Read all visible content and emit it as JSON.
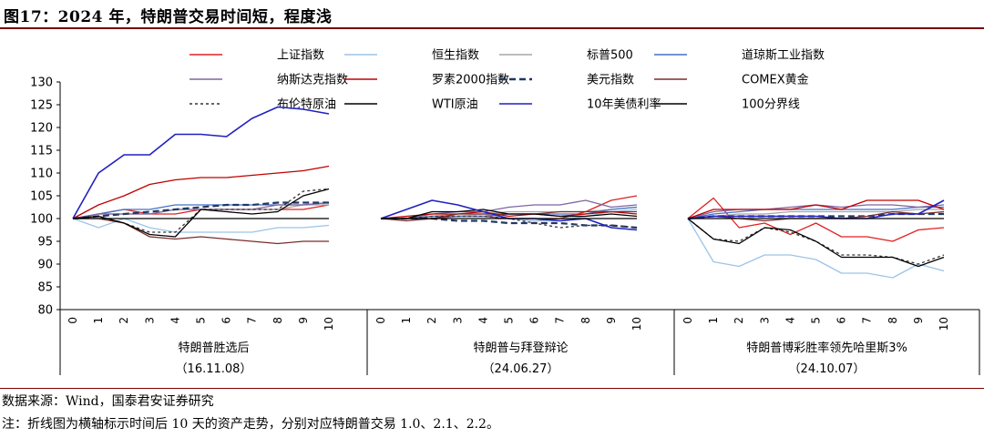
{
  "page": {
    "title": "图17：2024 年，特朗普交易时间短，程度浅",
    "source": "数据来源：Wind，国泰君安证券研究",
    "note": "注：折线图为横轴标示时间后 10 天的资产走势，分别对应特朗普交易 1.0、2.1、2.2。"
  },
  "chart_data": {
    "type": "line",
    "title": "",
    "ylim": [
      80,
      130
    ],
    "yticks": [
      80,
      85,
      90,
      95,
      100,
      105,
      110,
      115,
      120,
      125,
      130
    ],
    "x": [
      0,
      1,
      2,
      3,
      4,
      5,
      6,
      7,
      8,
      9,
      10
    ],
    "legend_position": "top",
    "panels": [
      {
        "label": "特朗普胜选后",
        "date": "（16.11.08）",
        "series": {
          "shanghai": [
            100,
            101,
            102,
            101,
            101,
            102,
            102,
            102,
            102,
            102,
            103
          ],
          "hangseng": [
            100,
            98,
            100,
            98,
            97,
            97,
            97,
            97,
            98,
            98,
            98.5
          ],
          "sp500": [
            100,
            101,
            101,
            101,
            102,
            102,
            102,
            102,
            102,
            103,
            103
          ],
          "dow": [
            100,
            101,
            102,
            102,
            103,
            103,
            103,
            103,
            103,
            103,
            103.5
          ],
          "nasdaq": [
            100,
            101,
            101,
            101,
            102,
            102,
            102,
            102,
            103,
            103,
            103.5
          ],
          "csi2000": [
            100,
            103,
            105,
            107.5,
            108.5,
            109,
            109,
            109.5,
            110,
            110.5,
            111.5
          ],
          "dxy": [
            100,
            100.5,
            101,
            101.5,
            102,
            102.5,
            103,
            103,
            103.5,
            103.5,
            103.5
          ],
          "comex_gold": [
            100,
            100,
            99,
            96,
            95.5,
            96,
            95.5,
            95,
            94.5,
            95,
            95
          ],
          "brent": [
            100,
            100.5,
            99,
            97,
            97,
            102,
            102,
            102,
            102,
            106,
            106.5
          ],
          "wti": [
            100,
            100.5,
            99,
            96.5,
            96,
            102,
            101.5,
            101,
            101.5,
            105,
            106.5
          ],
          "ust10y": [
            100,
            110,
            114,
            114,
            118.5,
            118.5,
            118,
            122,
            124.5,
            124,
            123
          ],
          "line100": [
            100,
            100,
            100,
            100,
            100,
            100,
            100,
            100,
            100,
            100,
            100
          ]
        }
      },
      {
        "label": "特朗普与拜登辩论",
        "date": "（24.06.27）",
        "series": {
          "shanghai": [
            100,
            100,
            100,
            100.5,
            100.5,
            100,
            99.5,
            100,
            101.5,
            104,
            105
          ],
          "hangseng": [
            100,
            100,
            100.5,
            100.5,
            101,
            100,
            99.5,
            99.5,
            100.5,
            101.5,
            102
          ],
          "sp500": [
            100,
            100,
            100.5,
            101,
            101,
            101.5,
            101.5,
            101.5,
            101.5,
            102,
            102.5
          ],
          "dow": [
            100,
            100,
            100.5,
            100.5,
            100.5,
            101,
            101,
            101,
            101,
            102,
            102.5
          ],
          "nasdaq": [
            100,
            100,
            101,
            101.5,
            101.5,
            102.5,
            103,
            103,
            104,
            102.5,
            103
          ],
          "csi2000": [
            100,
            100.5,
            101,
            101,
            101.5,
            100.5,
            101,
            100.5,
            101,
            101.5,
            101
          ],
          "dxy": [
            100,
            100,
            100,
            99.5,
            99.5,
            99,
            99,
            99,
            98.5,
            98.5,
            98
          ],
          "comex_gold": [
            100,
            99.5,
            100,
            101,
            101,
            101,
            101,
            101.5,
            101.5,
            101.5,
            101.5
          ],
          "brent": [
            100,
            100,
            100.5,
            100.5,
            100.5,
            100,
            99,
            98,
            98.5,
            98.5,
            98
          ],
          "wti": [
            100,
            100,
            101.5,
            101.5,
            102,
            101,
            101,
            100.5,
            100.5,
            101,
            100.5
          ],
          "ust10y": [
            100,
            102,
            104,
            103,
            101.5,
            100,
            100,
            99.5,
            100,
            98,
            97.5
          ],
          "line100": [
            100,
            100,
            100,
            100,
            100,
            100,
            100,
            100,
            100,
            100,
            100
          ]
        }
      },
      {
        "label": "特朗普博彩胜率领先哈里斯3%",
        "date": "（24.10.07）",
        "series": {
          "shanghai": [
            100,
            104.5,
            98,
            99,
            96.5,
            99,
            96,
            96,
            95,
            97.5,
            98
          ],
          "hangseng": [
            100,
            90.5,
            89.5,
            92,
            92,
            91,
            88,
            88,
            87,
            90,
            88.5
          ],
          "sp500": [
            100,
            100.5,
            101,
            101,
            101.5,
            101.5,
            101.5,
            101.5,
            101.5,
            102,
            102
          ],
          "dow": [
            100,
            101,
            101.5,
            102,
            102,
            102,
            102,
            102,
            102,
            102.5,
            102.5
          ],
          "nasdaq": [
            100,
            101.5,
            102,
            102,
            102.5,
            103,
            102.5,
            103,
            103,
            102.5,
            103
          ],
          "csi2000": [
            100,
            102,
            102,
            102,
            102,
            103,
            102,
            104,
            104,
            104,
            102
          ],
          "dxy": [
            100,
            100.5,
            100.5,
            100.5,
            100.5,
            100.5,
            100.5,
            100.5,
            101,
            101,
            101
          ],
          "comex_gold": [
            100,
            100.5,
            100,
            99.5,
            100,
            100,
            100,
            100.5,
            101.5,
            101,
            101.5
          ],
          "brent": [
            100,
            95.5,
            95,
            98,
            97,
            95,
            92,
            92,
            91.5,
            90,
            92
          ],
          "wti": [
            100,
            95.5,
            94.5,
            98,
            97.5,
            95,
            91.5,
            91.5,
            91.5,
            89.5,
            91.5
          ],
          "ust10y": [
            100,
            100.5,
            100.5,
            100.5,
            100.5,
            100.5,
            100,
            100,
            101,
            101,
            104
          ],
          "line100": [
            100,
            100,
            100,
            100,
            100,
            100,
            100,
            100,
            100,
            100,
            100
          ]
        }
      }
    ],
    "legend": [
      {
        "key": "shanghai",
        "name": "上证指数",
        "color": "#e02020",
        "dash": "solid"
      },
      {
        "key": "hangseng",
        "name": "恒生指数",
        "color": "#9cc4e8",
        "dash": "solid"
      },
      {
        "key": "sp500",
        "name": "标普500",
        "color": "#a6a6a6",
        "dash": "solid"
      },
      {
        "key": "dow",
        "name": "道琼斯工业指数",
        "color": "#4472c4",
        "dash": "solid"
      },
      {
        "key": "nasdaq",
        "name": "纳斯达克指数",
        "color": "#8064a2",
        "dash": "solid"
      },
      {
        "key": "csi2000",
        "name": "罗素2000指数",
        "color": "#c00000",
        "dash": "solid"
      },
      {
        "key": "dxy",
        "name": "美元指数",
        "color": "#1f3864",
        "dash": "long"
      },
      {
        "key": "comex_gold",
        "name": "COMEX黄金",
        "color": "#7b2c2c",
        "dash": "solid"
      },
      {
        "key": "brent",
        "name": "布伦特原油",
        "color": "#333333",
        "dash": "short"
      },
      {
        "key": "wti",
        "name": "WTI原油",
        "color": "#000000",
        "dash": "solid"
      },
      {
        "key": "ust10y",
        "name": "10年美债利率",
        "color": "#2020c0",
        "dash": "solid"
      },
      {
        "key": "line100",
        "name": "100分界线",
        "color": "#000000",
        "dash": "solid"
      }
    ]
  }
}
